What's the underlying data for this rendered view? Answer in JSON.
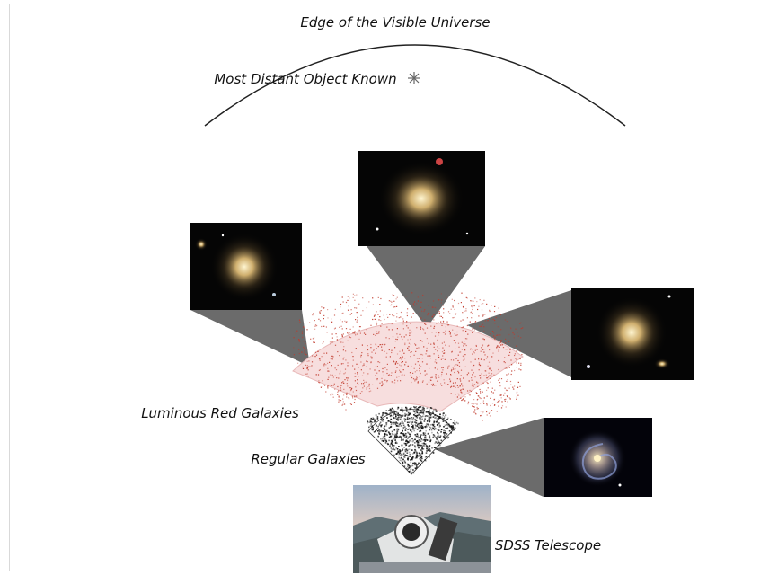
{
  "labels": {
    "edge": "Edge of the Visible Universe",
    "most_distant": "Most Distant Object Known",
    "lrg": "Luminous Red Galaxies",
    "regular": "Regular Galaxies",
    "telescope": "SDSS Telescope"
  },
  "colors": {
    "lrg_dots": "#c0392b",
    "regular_dots": "#111111",
    "cone": "#6b6b6b"
  },
  "icons": [
    "star-icon"
  ]
}
